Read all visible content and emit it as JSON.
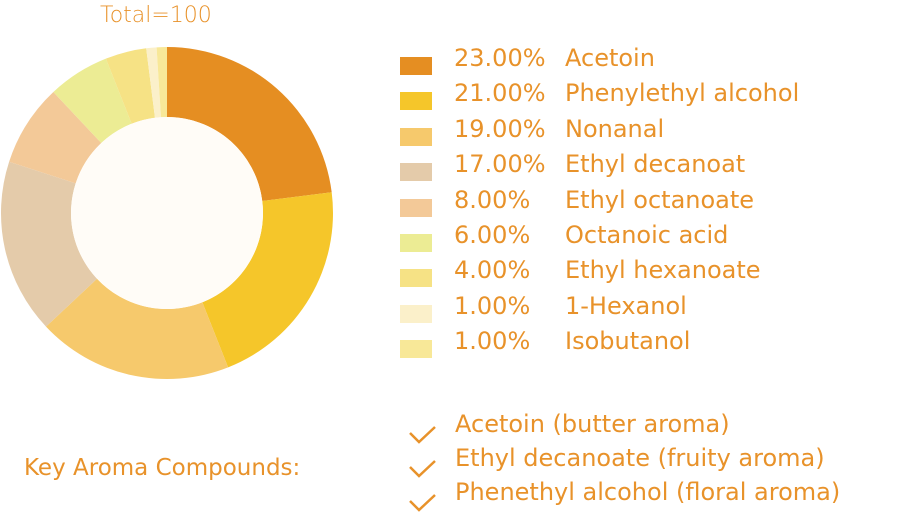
{
  "chart_data": {
    "type": "pie",
    "variant": "donut",
    "title": "Total=100",
    "start": "top",
    "direction": "clockwise",
    "legend_position": "right",
    "slices": [
      {
        "label": "Acetoin",
        "value": 23,
        "percent": "23.00%",
        "color": "#e58e22"
      },
      {
        "label": "Phenylethyl alcohol",
        "value": 21,
        "percent": "21.00%",
        "color": "#f5c62a"
      },
      {
        "label": "Nonanal",
        "value": 19,
        "percent": "19.00%",
        "color": "#f6c96c"
      },
      {
        "label": "Ethyl decanoat",
        "value": 17,
        "percent": "17.00%",
        "color": "#e4cbaa"
      },
      {
        "label": "Ethyl octanoate",
        "value": 8,
        "percent": "8.00%",
        "color": "#f3c998"
      },
      {
        "label": "Octanoic acid",
        "value": 6,
        "percent": "6.00%",
        "color": "#ecec94"
      },
      {
        "label": "Ethyl hexanoate",
        "value": 4,
        "percent": "4.00%",
        "color": "#f6e285"
      },
      {
        "label": "1-Hexanol",
        "value": 1,
        "percent": "1.00%",
        "color": "#fbf0ca"
      },
      {
        "label": "Isobutanol",
        "value": 1,
        "percent": "1.00%",
        "color": "#f8e898"
      }
    ]
  },
  "key_compounds": {
    "label": "Key Aroma Compounds:",
    "items": [
      "Acetoin (butter aroma)",
      "Ethyl decanoate (fruity aroma)",
      "Phenethyl alcohol (floral aroma)"
    ]
  },
  "colors": {
    "text": "#e8922a",
    "hole": "#fffcf7"
  }
}
